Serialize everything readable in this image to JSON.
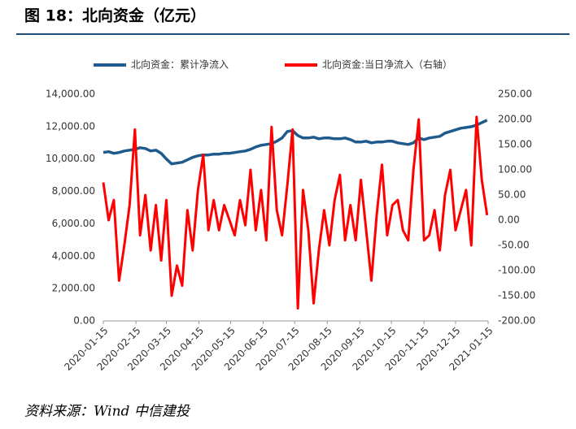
{
  "chart_data": {
    "type": "line",
    "title": "图 18：北向资金（亿元）",
    "source": "资料来源：Wind 中信建投",
    "x": [
      "2020-01-15",
      "2020-01-20",
      "2020-01-25",
      "2020-01-30",
      "2020-02-04",
      "2020-02-09",
      "2020-02-14",
      "2020-02-19",
      "2020-02-24",
      "2020-02-29",
      "2020-03-05",
      "2020-03-10",
      "2020-03-15",
      "2020-03-20",
      "2020-03-25",
      "2020-03-30",
      "2020-04-04",
      "2020-04-09",
      "2020-04-14",
      "2020-04-19",
      "2020-04-24",
      "2020-04-29",
      "2020-05-04",
      "2020-05-09",
      "2020-05-14",
      "2020-05-19",
      "2020-05-24",
      "2020-05-29",
      "2020-06-03",
      "2020-06-08",
      "2020-06-13",
      "2020-06-18",
      "2020-06-23",
      "2020-06-28",
      "2020-07-03",
      "2020-07-08",
      "2020-07-13",
      "2020-07-18",
      "2020-07-23",
      "2020-07-28",
      "2020-08-02",
      "2020-08-07",
      "2020-08-12",
      "2020-08-17",
      "2020-08-22",
      "2020-08-27",
      "2020-09-01",
      "2020-09-06",
      "2020-09-11",
      "2020-09-16",
      "2020-09-21",
      "2020-09-26",
      "2020-10-01",
      "2020-10-06",
      "2020-10-11",
      "2020-10-16",
      "2020-10-21",
      "2020-10-26",
      "2020-10-31",
      "2020-11-05",
      "2020-11-10",
      "2020-11-15",
      "2020-11-20",
      "2020-11-25",
      "2020-11-30",
      "2020-12-05",
      "2020-12-10",
      "2020-12-15",
      "2020-12-20",
      "2020-12-25",
      "2020-12-30",
      "2021-01-04",
      "2021-01-09",
      "2021-01-14"
    ],
    "series": [
      {
        "name": "北向资金：累计净流入",
        "color": "#1f5a8c",
        "axis": "y",
        "values": [
          10400,
          10450,
          10350,
          10400,
          10500,
          10550,
          10600,
          10700,
          10650,
          10500,
          10550,
          10350,
          10000,
          9700,
          9750,
          9800,
          9950,
          10100,
          10200,
          10250,
          10250,
          10300,
          10300,
          10350,
          10350,
          10400,
          10450,
          10500,
          10600,
          10750,
          10850,
          10900,
          10950,
          11100,
          11300,
          11700,
          11750,
          11450,
          11300,
          11300,
          11350,
          11250,
          11300,
          11300,
          11250,
          11250,
          11300,
          11200,
          11050,
          11050,
          11100,
          11000,
          11050,
          11050,
          11100,
          11100,
          11000,
          10950,
          10900,
          11000,
          11300,
          11200,
          11300,
          11350,
          11400,
          11600,
          11700,
          11800,
          11900,
          11950,
          12000,
          12100,
          12250,
          12400
        ]
      },
      {
        "name": "北向资金:当日净流入（右轴）",
        "color": "#ff0000",
        "axis": "y2",
        "values": [
          75,
          0,
          40,
          -120,
          -50,
          30,
          180,
          -30,
          50,
          -60,
          30,
          -80,
          40,
          -150,
          -90,
          -130,
          20,
          -60,
          60,
          130,
          -20,
          40,
          -20,
          30,
          0,
          -30,
          40,
          -10,
          100,
          -20,
          60,
          -40,
          185,
          20,
          -30,
          70,
          180,
          -175,
          60,
          -20,
          -165,
          -60,
          20,
          -50,
          40,
          90,
          -40,
          30,
          -40,
          80,
          -20,
          -120,
          10,
          110,
          -30,
          30,
          40,
          -20,
          -40,
          100,
          200,
          -40,
          -30,
          20,
          -60,
          50,
          100,
          -20,
          20,
          60,
          -50,
          205,
          80,
          10
        ]
      }
    ],
    "xlim": [
      "2020-01-15",
      "2021-01-15"
    ],
    "xticks": [
      "2020-01-15",
      "2020-02-15",
      "2020-03-15",
      "2020-04-15",
      "2020-05-15",
      "2020-06-15",
      "2020-07-15",
      "2020-08-15",
      "2020-09-15",
      "2020-10-15",
      "2020-11-15",
      "2020-12-15",
      "2021-01-15"
    ],
    "ylim": [
      0,
      14000
    ],
    "yticks": [
      {
        "value": 0,
        "label": "0.00"
      },
      {
        "value": 2000,
        "label": "2,000.00"
      },
      {
        "value": 4000,
        "label": "4,000.00"
      },
      {
        "value": 6000,
        "label": "6,000.00"
      },
      {
        "value": 8000,
        "label": "8,000.00"
      },
      {
        "value": 10000,
        "label": "10,000.00"
      },
      {
        "value": 12000,
        "label": "12,000.00"
      },
      {
        "value": 14000,
        "label": "14,000.00"
      }
    ],
    "y2lim": [
      -200,
      250
    ],
    "y2ticks": [
      {
        "value": -200,
        "label": "-200.00"
      },
      {
        "value": -150,
        "label": "-150.00"
      },
      {
        "value": -100,
        "label": "-100.00"
      },
      {
        "value": -50,
        "label": "-50.00"
      },
      {
        "value": 0,
        "label": "0.00"
      },
      {
        "value": 50,
        "label": "50.00"
      },
      {
        "value": 100,
        "label": "100.00"
      },
      {
        "value": 150,
        "label": "150.00"
      },
      {
        "value": 200,
        "label": "200.00"
      },
      {
        "value": 250,
        "label": "250.00"
      }
    ],
    "legend": "top"
  }
}
